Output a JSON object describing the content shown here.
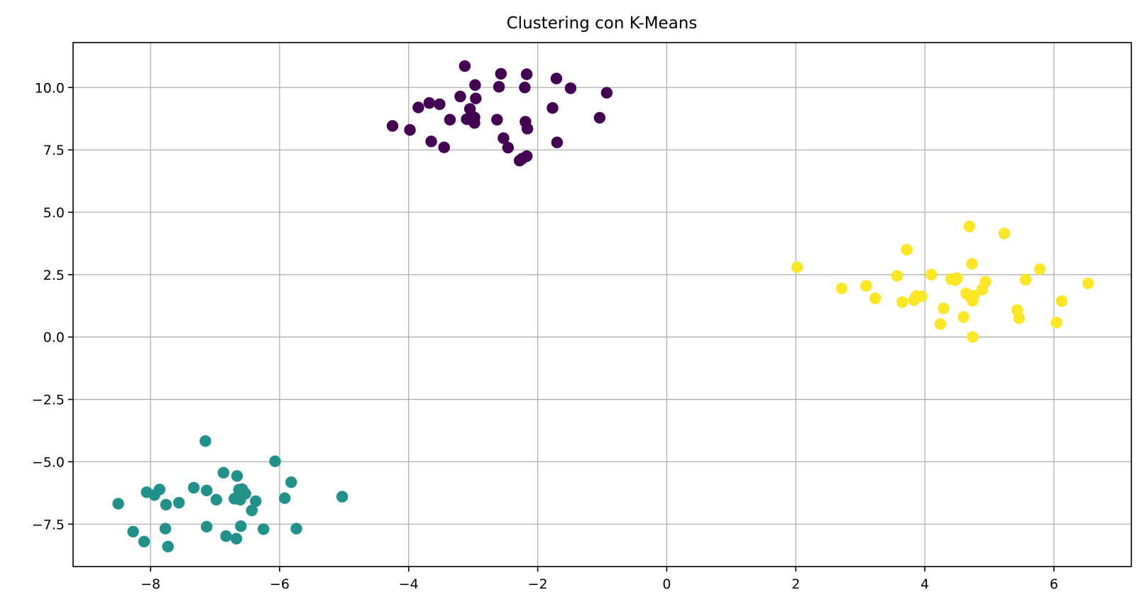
{
  "chart_data": {
    "type": "scatter",
    "title": "Clustering con K-Means",
    "xlabel": "",
    "ylabel": "",
    "xlim": [
      -9.2,
      7.2
    ],
    "ylim": [
      -9.2,
      11.8
    ],
    "x_ticks": [
      -8,
      -6,
      -4,
      -2,
      0,
      2,
      4,
      6
    ],
    "x_tick_labels": [
      "−8",
      "−6",
      "−4",
      "−2",
      "0",
      "2",
      "4",
      "6"
    ],
    "y_ticks": [
      -7.5,
      -5,
      -2.5,
      0,
      2.5,
      5,
      7.5,
      10
    ],
    "y_tick_labels": [
      "−7.5",
      "−5.0",
      "−2.5",
      "0.0",
      "2.5",
      "5.0",
      "7.5",
      "10.0"
    ],
    "grid": true,
    "legend": "none",
    "series": [
      {
        "color": "#440154",
        "x": [
          -4.25,
          -3.98,
          -3.85,
          -3.68,
          -3.52,
          -3.65,
          -3.45,
          -3.36,
          -3.2,
          -3.13,
          -3.1,
          -3.05,
          -3.02,
          -2.98,
          -2.96,
          -2.98,
          -2.97,
          -2.63,
          -2.6,
          -2.57,
          -2.53,
          -2.46,
          -2.28,
          -2.24,
          -2.19,
          -2.2,
          -2.17,
          -2.17,
          -2.16,
          -1.77,
          -1.71,
          -1.7,
          -1.49,
          -1.04,
          -0.93
        ],
        "y": [
          8.46,
          8.3,
          9.2,
          9.38,
          9.33,
          7.84,
          7.6,
          8.71,
          9.64,
          10.86,
          8.73,
          9.14,
          8.77,
          8.58,
          9.56,
          8.8,
          10.1,
          8.71,
          10.03,
          10.55,
          7.97,
          7.59,
          7.07,
          7.15,
          8.63,
          10.0,
          10.53,
          7.25,
          8.35,
          9.18,
          10.36,
          7.8,
          9.97,
          8.79,
          9.79
        ]
      },
      {
        "color": "#21918c",
        "x": [
          -8.5,
          -8.27,
          -8.1,
          -8.06,
          -7.94,
          -7.86,
          -7.77,
          -7.76,
          -7.73,
          -7.56,
          -7.33,
          -7.15,
          -7.13,
          -7.13,
          -6.98,
          -6.87,
          -6.83,
          -6.7,
          -6.67,
          -6.66,
          -6.65,
          -6.63,
          -6.61,
          -6.6,
          -6.58,
          -6.53,
          -6.43,
          -6.37,
          -6.25,
          -6.07,
          -5.92,
          -5.82,
          -5.74,
          -5.03
        ],
        "y": [
          -6.68,
          -7.8,
          -8.2,
          -6.22,
          -6.33,
          -6.11,
          -7.68,
          -6.72,
          -8.4,
          -6.64,
          -6.04,
          -4.17,
          -6.15,
          -7.6,
          -6.52,
          -5.44,
          -7.98,
          -6.48,
          -8.08,
          -5.57,
          -6.48,
          -6.12,
          -6.52,
          -7.58,
          -6.1,
          -6.28,
          -6.95,
          -6.58,
          -7.7,
          -4.98,
          -6.46,
          -5.82,
          -7.68,
          -6.4
        ]
      },
      {
        "color": "#fde725",
        "x": [
          2.02,
          2.71,
          3.09,
          3.23,
          3.57,
          3.65,
          3.72,
          3.83,
          3.87,
          3.95,
          4.1,
          4.24,
          4.29,
          4.41,
          4.47,
          4.5,
          4.6,
          4.64,
          4.69,
          4.7,
          4.73,
          4.74,
          4.74,
          4.76,
          4.89,
          4.94,
          5.23,
          5.43,
          5.46,
          5.56,
          5.78,
          6.04,
          6.12,
          6.53
        ],
        "y": [
          2.8,
          1.95,
          2.05,
          1.55,
          2.45,
          1.4,
          3.5,
          1.48,
          1.65,
          1.63,
          2.5,
          0.52,
          1.15,
          2.32,
          2.28,
          2.36,
          0.8,
          1.75,
          4.43,
          1.62,
          2.93,
          1.45,
          0.0,
          1.65,
          1.9,
          2.22,
          4.15,
          1.08,
          0.75,
          2.3,
          2.72,
          0.58,
          1.44,
          2.15
        ]
      }
    ]
  }
}
